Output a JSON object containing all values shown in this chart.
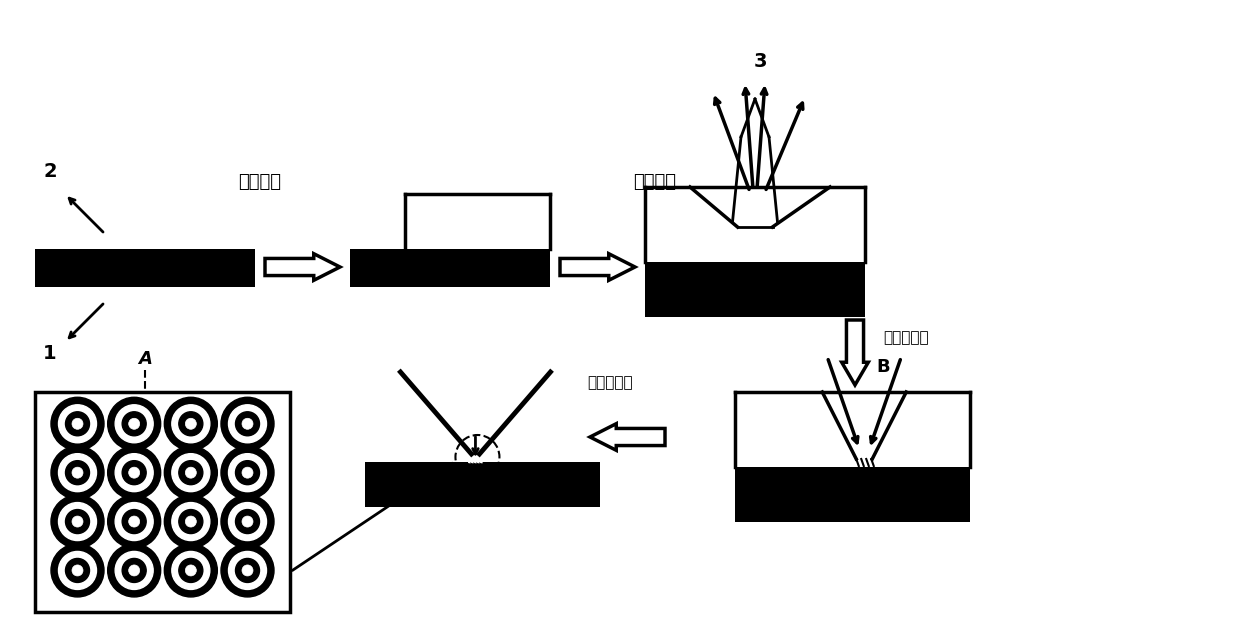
{
  "bg_color": "#ffffff",
  "black": "#000000",
  "white": "#ffffff",
  "gray_light": "#cccccc",
  "label_2": "2",
  "label_1": "1",
  "label_3": "3",
  "label_A": "A",
  "label_B": "B",
  "text_wet_etch": "湿法刻蚀",
  "text_metal_sputter": "金属溅射",
  "text_fib1": "聚焦离子束",
  "text_fib2": "聚焦离子束",
  "figsize": [
    12.4,
    6.42
  ],
  "dpi": 100
}
